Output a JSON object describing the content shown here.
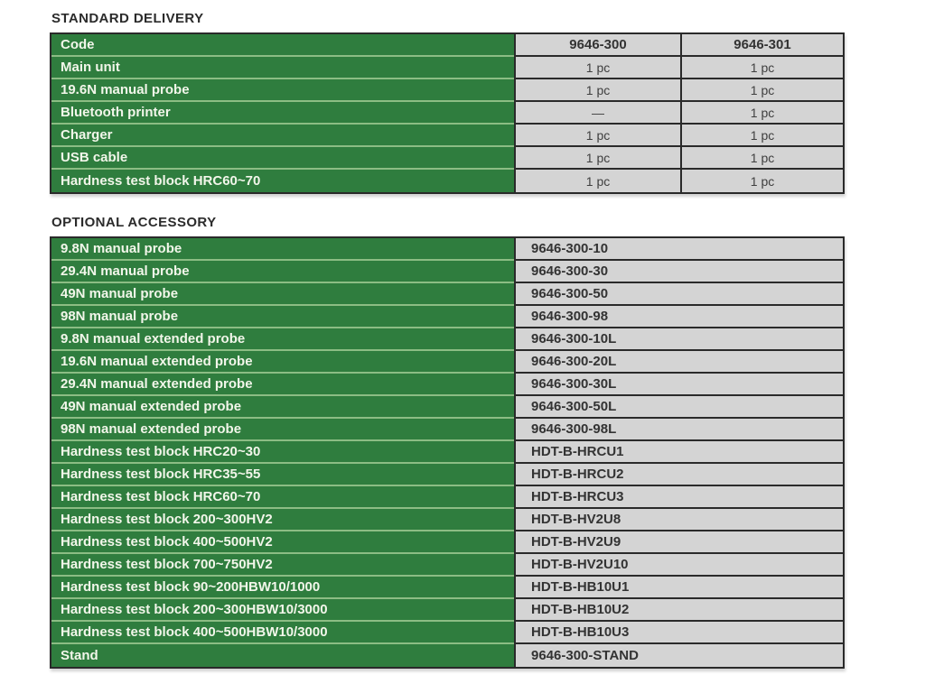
{
  "colors": {
    "green_cell": "#2f7d3e",
    "gray_cell": "#d4d4d4",
    "dark_border": "#2a2a2a",
    "light_separator": "#8cbd84",
    "label_text": "#f2f6ea",
    "value_text": "#333333",
    "heading_text": "#2b2b2b"
  },
  "standard_delivery": {
    "heading": "STANDARD DELIVERY",
    "header": {
      "label": "Code",
      "col1": "9646-300",
      "col2": "9646-301"
    },
    "rows": [
      {
        "label": "Main unit",
        "col1": "1 pc",
        "col2": "1 pc"
      },
      {
        "label": "19.6N manual probe",
        "col1": "1 pc",
        "col2": "1 pc"
      },
      {
        "label": "Bluetooth printer",
        "col1": "—",
        "col2": "1 pc"
      },
      {
        "label": "Charger",
        "col1": "1 pc",
        "col2": "1 pc"
      },
      {
        "label": "USB cable",
        "col1": "1 pc",
        "col2": "1 pc"
      },
      {
        "label": "Hardness test block HRC60~70",
        "col1": "1 pc",
        "col2": "1 pc"
      }
    ]
  },
  "optional_accessory": {
    "heading": "OPTIONAL ACCESSORY",
    "rows": [
      {
        "label": "9.8N manual probe",
        "code": "9646-300-10"
      },
      {
        "label": "29.4N manual probe",
        "code": "9646-300-30"
      },
      {
        "label": "49N manual probe",
        "code": "9646-300-50"
      },
      {
        "label": "98N manual probe",
        "code": "9646-300-98"
      },
      {
        "label": "9.8N manual extended probe",
        "code": "9646-300-10L"
      },
      {
        "label": "19.6N manual extended probe",
        "code": "9646-300-20L"
      },
      {
        "label": "29.4N manual extended probe",
        "code": "9646-300-30L"
      },
      {
        "label": "49N manual extended probe",
        "code": "9646-300-50L"
      },
      {
        "label": "98N manual extended probe",
        "code": "9646-300-98L"
      },
      {
        "label": "Hardness test block HRC20~30",
        "code": "HDT-B-HRCU1"
      },
      {
        "label": "Hardness test block HRC35~55",
        "code": "HDT-B-HRCU2"
      },
      {
        "label": "Hardness test block HRC60~70",
        "code": "HDT-B-HRCU3"
      },
      {
        "label": "Hardness test block 200~300HV2",
        "code": "HDT-B-HV2U8"
      },
      {
        "label": "Hardness test block 400~500HV2",
        "code": "HDT-B-HV2U9"
      },
      {
        "label": "Hardness test block 700~750HV2",
        "code": "HDT-B-HV2U10"
      },
      {
        "label": "Hardness test block 90~200HBW10/1000",
        "code": "HDT-B-HB10U1"
      },
      {
        "label": "Hardness test block 200~300HBW10/3000",
        "code": "HDT-B-HB10U2"
      },
      {
        "label": "Hardness test block 400~500HBW10/3000",
        "code": "HDT-B-HB10U3"
      },
      {
        "label": "Stand",
        "code": "9646-300-STAND"
      }
    ]
  }
}
